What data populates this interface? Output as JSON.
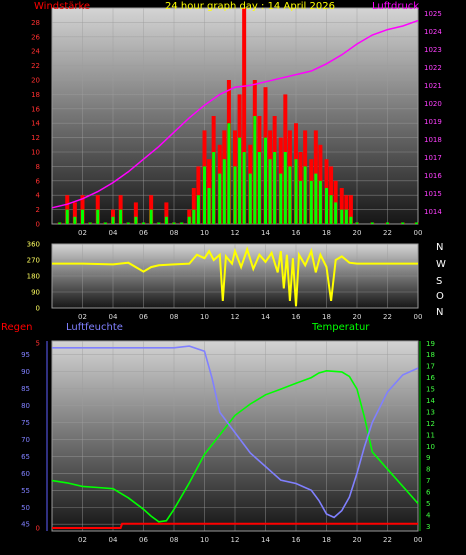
{
  "header": {
    "title": "24 hour graph day : 14 April 2026",
    "left_label": "Windstärke",
    "right_label": "Luftdruck"
  },
  "direction_labels": [
    "N",
    "W",
    "S",
    "O",
    "N"
  ],
  "bottom_header": {
    "rain": "Regen",
    "humidity": "Luftfeuchte",
    "temperature": "Temperatur"
  },
  "colors": {
    "wind_avg": "#00ff00",
    "wind_gust": "#ff0000",
    "pressure": "#ff00ff",
    "direction": "#ffff00",
    "humidity": "#8080ff",
    "temperature": "#00ff00",
    "rain": "#ff0000",
    "title": "#ffff00",
    "windstaerke_label": "#ff0000",
    "luftdruck_label": "#ff00ff"
  },
  "chart_data": [
    {
      "type": "bar",
      "name": "wind",
      "x_ticks": [
        "02",
        "04",
        "06",
        "08",
        "10",
        "12",
        "14",
        "16",
        "18",
        "20",
        "22",
        "00"
      ],
      "y_ticks": [
        "0",
        "2",
        "4",
        "6",
        "8",
        "10",
        "12",
        "14",
        "16",
        "18",
        "20",
        "22",
        "24",
        "26",
        "28"
      ],
      "y2_ticks": [
        "1014",
        "1015",
        "1016",
        "1017",
        "1018",
        "1019",
        "1020",
        "1021",
        "1022",
        "1023",
        "1024",
        "1025"
      ],
      "xlim": [
        0,
        24
      ],
      "ylim": [
        0,
        30
      ],
      "y2lim": [
        1013.3,
        1025.3
      ],
      "series": [
        {
          "key": "gust",
          "points": [
            [
              0.5,
              0
            ],
            [
              1,
              4
            ],
            [
              1.5,
              3
            ],
            [
              2,
              4
            ],
            [
              2.5,
              0
            ],
            [
              3,
              4
            ],
            [
              3.5,
              0
            ],
            [
              4,
              2
            ],
            [
              4.5,
              4
            ],
            [
              5,
              0
            ],
            [
              5.5,
              3
            ],
            [
              6,
              0
            ],
            [
              6.5,
              4
            ],
            [
              7,
              0
            ],
            [
              7.5,
              3
            ],
            [
              8,
              0
            ],
            [
              8.5,
              0
            ],
            [
              9,
              2
            ],
            [
              9.3,
              5
            ],
            [
              9.6,
              8
            ],
            [
              10,
              13
            ],
            [
              10.3,
              9
            ],
            [
              10.6,
              15
            ],
            [
              11,
              11
            ],
            [
              11.3,
              13
            ],
            [
              11.6,
              20
            ],
            [
              12,
              13
            ],
            [
              12.3,
              18
            ],
            [
              12.6,
              30
            ],
            [
              13,
              11
            ],
            [
              13.3,
              20
            ],
            [
              13.6,
              15
            ],
            [
              14,
              19
            ],
            [
              14.3,
              13
            ],
            [
              14.6,
              15
            ],
            [
              15,
              12
            ],
            [
              15.3,
              18
            ],
            [
              15.6,
              13
            ],
            [
              16,
              14
            ],
            [
              16.3,
              10
            ],
            [
              16.6,
              13
            ],
            [
              17,
              9
            ],
            [
              17.3,
              13
            ],
            [
              17.6,
              11
            ],
            [
              18,
              9
            ],
            [
              18.3,
              8
            ],
            [
              18.6,
              6
            ],
            [
              19,
              5
            ],
            [
              19.3,
              4
            ],
            [
              19.6,
              4
            ],
            [
              20,
              0
            ],
            [
              21,
              0
            ],
            [
              22,
              0
            ],
            [
              23,
              0
            ],
            [
              23.9,
              0
            ]
          ]
        },
        {
          "key": "avg",
          "points": [
            [
              0.5,
              0
            ],
            [
              1,
              2
            ],
            [
              1.5,
              1
            ],
            [
              2,
              2
            ],
            [
              2.5,
              0
            ],
            [
              3,
              2
            ],
            [
              3.5,
              0
            ],
            [
              4,
              1
            ],
            [
              4.5,
              2
            ],
            [
              5,
              0
            ],
            [
              5.5,
              1
            ],
            [
              6,
              0
            ],
            [
              6.5,
              2
            ],
            [
              7,
              0
            ],
            [
              7.5,
              1
            ],
            [
              8,
              0
            ],
            [
              8.5,
              0
            ],
            [
              9,
              1
            ],
            [
              9.3,
              2
            ],
            [
              9.6,
              4
            ],
            [
              10,
              8
            ],
            [
              10.3,
              5
            ],
            [
              10.6,
              10
            ],
            [
              11,
              7
            ],
            [
              11.3,
              9
            ],
            [
              11.6,
              14
            ],
            [
              12,
              8
            ],
            [
              12.3,
              12
            ],
            [
              12.6,
              10
            ],
            [
              13,
              7
            ],
            [
              13.3,
              15
            ],
            [
              13.6,
              10
            ],
            [
              14,
              12
            ],
            [
              14.3,
              9
            ],
            [
              14.6,
              10
            ],
            [
              15,
              7
            ],
            [
              15.3,
              10
            ],
            [
              15.6,
              8
            ],
            [
              16,
              9
            ],
            [
              16.3,
              6
            ],
            [
              16.6,
              8
            ],
            [
              17,
              6
            ],
            [
              17.3,
              7
            ],
            [
              17.6,
              6
            ],
            [
              18,
              5
            ],
            [
              18.3,
              4
            ],
            [
              18.6,
              3
            ],
            [
              19,
              2
            ],
            [
              19.3,
              2
            ],
            [
              19.6,
              1
            ],
            [
              20,
              0
            ],
            [
              21,
              0
            ],
            [
              22,
              0
            ],
            [
              23,
              0
            ],
            [
              23.9,
              0
            ]
          ]
        },
        {
          "key": "pressure",
          "points": [
            [
              0,
              1014.2
            ],
            [
              1,
              1014.4
            ],
            [
              2,
              1014.7
            ],
            [
              3,
              1015.1
            ],
            [
              4,
              1015.6
            ],
            [
              5,
              1016.2
            ],
            [
              6,
              1016.9
            ],
            [
              7,
              1017.6
            ],
            [
              8,
              1018.4
            ],
            [
              9,
              1019.2
            ],
            [
              10,
              1019.9
            ],
            [
              11,
              1020.5
            ],
            [
              12,
              1020.9
            ],
            [
              13,
              1021.0
            ],
            [
              14,
              1021.2
            ],
            [
              15,
              1021.4
            ],
            [
              16,
              1021.6
            ],
            [
              17,
              1021.8
            ],
            [
              18,
              1022.2
            ],
            [
              19,
              1022.7
            ],
            [
              20,
              1023.3
            ],
            [
              21,
              1023.8
            ],
            [
              22,
              1024.1
            ],
            [
              23,
              1024.3
            ],
            [
              24,
              1024.6
            ]
          ]
        }
      ]
    },
    {
      "type": "line",
      "name": "wind_direction",
      "x_ticks": [
        "02",
        "04",
        "06",
        "08",
        "10",
        "12",
        "14",
        "16",
        "18",
        "20",
        "22",
        "00"
      ],
      "y_ticks": [
        "0",
        "90",
        "180",
        "270",
        "360"
      ],
      "xlim": [
        0,
        24
      ],
      "ylim": [
        0,
        360
      ],
      "series": [
        {
          "key": "direction",
          "points": [
            [
              0,
              250
            ],
            [
              2,
              250
            ],
            [
              4,
              245
            ],
            [
              5,
              255
            ],
            [
              6,
              205
            ],
            [
              6.5,
              230
            ],
            [
              7,
              240
            ],
            [
              8,
              245
            ],
            [
              9,
              250
            ],
            [
              9.5,
              300
            ],
            [
              10,
              280
            ],
            [
              10.3,
              320
            ],
            [
              10.6,
              270
            ],
            [
              11,
              300
            ],
            [
              11.2,
              40
            ],
            [
              11.4,
              290
            ],
            [
              11.8,
              250
            ],
            [
              12,
              320
            ],
            [
              12.4,
              230
            ],
            [
              12.8,
              330
            ],
            [
              13.2,
              220
            ],
            [
              13.6,
              300
            ],
            [
              14,
              260
            ],
            [
              14.4,
              310
            ],
            [
              14.8,
              200
            ],
            [
              15,
              320
            ],
            [
              15.2,
              110
            ],
            [
              15.4,
              300
            ],
            [
              15.6,
              40
            ],
            [
              15.8,
              280
            ],
            [
              16,
              10
            ],
            [
              16.2,
              300
            ],
            [
              16.6,
              240
            ],
            [
              17,
              320
            ],
            [
              17.3,
              200
            ],
            [
              17.6,
              300
            ],
            [
              18,
              230
            ],
            [
              18.3,
              40
            ],
            [
              18.6,
              270
            ],
            [
              19,
              290
            ],
            [
              19.5,
              255
            ],
            [
              20,
              250
            ],
            [
              22,
              250
            ],
            [
              24,
              250
            ]
          ]
        }
      ]
    },
    {
      "type": "line",
      "name": "climate",
      "x_ticks": [
        "02",
        "04",
        "06",
        "08",
        "10",
        "12",
        "14",
        "16",
        "18",
        "20",
        "22",
        "00"
      ],
      "y_ticks": [
        "45",
        "50",
        "55",
        "60",
        "65",
        "70",
        "75",
        "80",
        "85",
        "90",
        "95"
      ],
      "y2_ticks": [
        "3",
        "4",
        "5",
        "6",
        "7",
        "8",
        "9",
        "10",
        "11",
        "12",
        "13",
        "14",
        "15",
        "16",
        "17",
        "18",
        "19"
      ],
      "rain_ticks": [
        "0",
        "5"
      ],
      "xlim": [
        0,
        24
      ],
      "ylim": [
        43,
        99
      ],
      "y2lim": [
        2.6,
        19.2
      ],
      "series": [
        {
          "key": "humidity",
          "points": [
            [
              0,
              97
            ],
            [
              2,
              97
            ],
            [
              4,
              97
            ],
            [
              6,
              97
            ],
            [
              8,
              97
            ],
            [
              9,
              97.5
            ],
            [
              10,
              96
            ],
            [
              10.5,
              88
            ],
            [
              11,
              78
            ],
            [
              12,
              72
            ],
            [
              13,
              66
            ],
            [
              14,
              62
            ],
            [
              14.5,
              60
            ],
            [
              15,
              58
            ],
            [
              16,
              57
            ],
            [
              17,
              55
            ],
            [
              17.5,
              52
            ],
            [
              18,
              48
            ],
            [
              18.5,
              47
            ],
            [
              19,
              49
            ],
            [
              19.5,
              53
            ],
            [
              20,
              60
            ],
            [
              20.5,
              68
            ],
            [
              21,
              75
            ],
            [
              22,
              84
            ],
            [
              23,
              89
            ],
            [
              24,
              91
            ]
          ]
        },
        {
          "key": "temperature",
          "points": [
            [
              0,
              7
            ],
            [
              1,
              6.8
            ],
            [
              2,
              6.5
            ],
            [
              3,
              6.4
            ],
            [
              4,
              6.3
            ],
            [
              5,
              5.5
            ],
            [
              6,
              4.5
            ],
            [
              6.5,
              3.9
            ],
            [
              7,
              3.4
            ],
            [
              7.5,
              3.5
            ],
            [
              8,
              4.5
            ],
            [
              9,
              6.8
            ],
            [
              10,
              9.3
            ],
            [
              11,
              11
            ],
            [
              12,
              12.7
            ],
            [
              13,
              13.7
            ],
            [
              14,
              14.5
            ],
            [
              15,
              15
            ],
            [
              16,
              15.5
            ],
            [
              17,
              16
            ],
            [
              17.5,
              16.4
            ],
            [
              18,
              16.6
            ],
            [
              19,
              16.5
            ],
            [
              19.5,
              16.1
            ],
            [
              20,
              15
            ],
            [
              20.5,
              12.5
            ],
            [
              21,
              9.5
            ],
            [
              22,
              8
            ],
            [
              23,
              6.5
            ],
            [
              24,
              5
            ]
          ]
        },
        {
          "key": "rain",
          "points": [
            [
              0,
              0
            ],
            [
              4.5,
              0
            ],
            [
              4.6,
              0.6
            ],
            [
              24,
              0.6
            ]
          ]
        }
      ]
    }
  ]
}
